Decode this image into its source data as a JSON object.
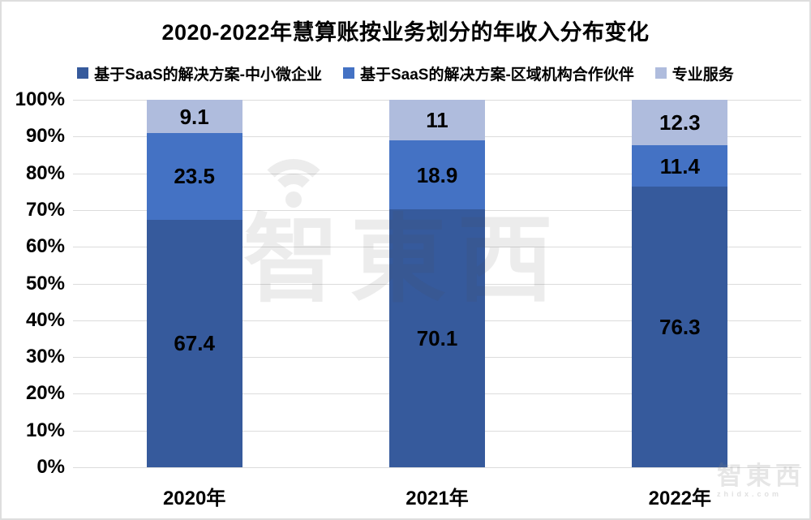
{
  "title": "2020-2022年慧算账按业务划分的年收入分布变化",
  "watermark": {
    "center_text": "智東西",
    "corner_text": "智東西",
    "corner_subtext": "zhidx.com"
  },
  "colors": {
    "series1": "#365A9C",
    "series2": "#4472C4",
    "series3": "#AFBCDD",
    "gridline": "#DCDCDC",
    "label": "#000000"
  },
  "chart_data": {
    "type": "bar",
    "stacked": true,
    "percent": true,
    "title": "2020-2022年慧算账按业务划分的年收入分布变化",
    "categories": [
      "2020年",
      "2021年",
      "2022年"
    ],
    "series": [
      {
        "name": "基于SaaS的解决方案-中小微企业",
        "color": "#365A9C",
        "values": [
          67.4,
          70.1,
          76.3
        ]
      },
      {
        "name": "基于SaaS的解决方案-区域机构合作伙伴",
        "color": "#4472C4",
        "values": [
          23.5,
          18.9,
          11.4
        ]
      },
      {
        "name": "专业服务",
        "color": "#AFBCDD",
        "values": [
          9.1,
          11,
          12.3
        ]
      }
    ],
    "data_labels": [
      [
        "67.4",
        "70.1",
        "76.3"
      ],
      [
        "23.5",
        "18.9",
        "11.4"
      ],
      [
        "9.1",
        "11",
        "12.3"
      ]
    ],
    "xlabel": "",
    "ylabel": "",
    "ylim": [
      0,
      100
    ],
    "yticks": [
      "100%",
      "90%",
      "80%",
      "70%",
      "60%",
      "50%",
      "40%",
      "30%",
      "20%",
      "10%",
      "0%"
    ],
    "grid": true,
    "legend_position": "top"
  }
}
